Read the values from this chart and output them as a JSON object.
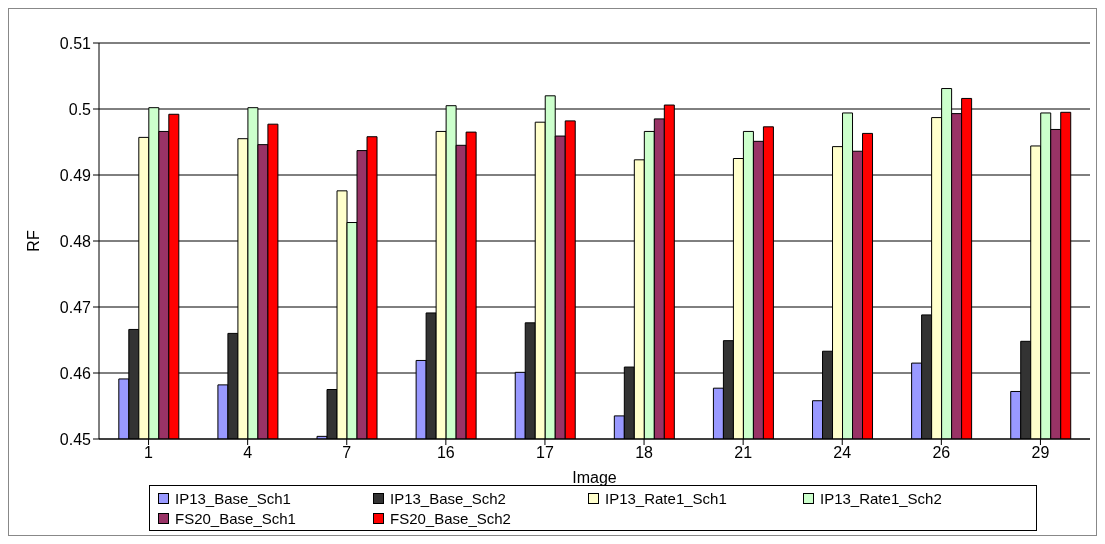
{
  "chart_data": {
    "type": "bar",
    "xlabel": "Image",
    "ylabel": "RF",
    "categories": [
      "1",
      "4",
      "7",
      "16",
      "17",
      "18",
      "21",
      "24",
      "26",
      "29"
    ],
    "ylim": [
      0.45,
      0.51
    ],
    "yticks": [
      0.45,
      0.46,
      0.47,
      0.48,
      0.49,
      0.5,
      0.51
    ],
    "grid": "y",
    "legend": "bottom",
    "series": [
      {
        "name": "IP13_Base_Sch1",
        "color": "#9999ff",
        "values": [
          0.4591,
          0.4582,
          0.4504,
          0.4619,
          0.4601,
          0.4535,
          0.4577,
          0.4558,
          0.4615,
          0.4572
        ]
      },
      {
        "name": "IP13_Base_Sch2",
        "color": "#333333",
        "values": [
          0.4666,
          0.466,
          0.4575,
          0.4691,
          0.4676,
          0.4609,
          0.4649,
          0.4633,
          0.4688,
          0.4648
        ]
      },
      {
        "name": "IP13_Rate1_Sch1",
        "color": "#ffffcc",
        "values": [
          0.4957,
          0.4955,
          0.4876,
          0.4966,
          0.498,
          0.4923,
          0.4925,
          0.4943,
          0.4987,
          0.4944
        ]
      },
      {
        "name": "IP13_Rate1_Sch2",
        "color": "#ccffcc",
        "values": [
          0.5002,
          0.5002,
          0.4828,
          0.5005,
          0.502,
          0.4966,
          0.4966,
          0.4994,
          0.5031,
          0.4994
        ]
      },
      {
        "name": "FS20_Base_Sch1",
        "color": "#993366",
        "values": [
          0.4966,
          0.4946,
          0.4937,
          0.4945,
          0.4959,
          0.4985,
          0.4951,
          0.4936,
          0.4993,
          0.4969
        ]
      },
      {
        "name": "FS20_Base_Sch2",
        "color": "#ff0000",
        "values": [
          0.4992,
          0.4977,
          0.4958,
          0.4965,
          0.4982,
          0.5006,
          0.4973,
          0.4963,
          0.5016,
          0.4995
        ]
      }
    ]
  }
}
